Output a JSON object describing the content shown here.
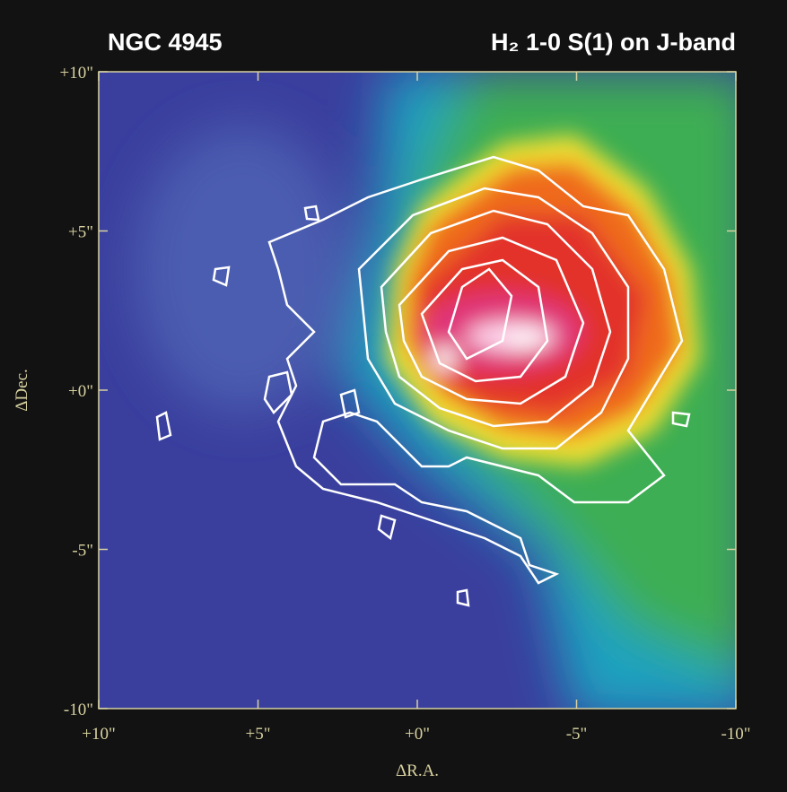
{
  "chart_data": {
    "type": "image",
    "title": "NGC 4945",
    "subtitle": "H₂ 1-0 S(1) on J-band",
    "x_label": "ΔR.A.",
    "y_label": "ΔDec.",
    "xlim": [
      10,
      -10
    ],
    "ylim": [
      -10,
      10
    ],
    "xticks": [
      {
        "value": 10,
        "label": "+10\""
      },
      {
        "value": 5,
        "label": "+5\""
      },
      {
        "value": 0,
        "label": "+0\""
      },
      {
        "value": -5,
        "label": "-5\""
      },
      {
        "value": -10,
        "label": "-10\""
      }
    ],
    "yticks": [
      {
        "value": -10,
        "label": "-10\""
      },
      {
        "value": -5,
        "label": "-5\""
      },
      {
        "value": 0,
        "label": "+0\""
      },
      {
        "value": 5,
        "label": "+5\""
      },
      {
        "value": 10,
        "label": "+10\""
      }
    ]
  }
}
